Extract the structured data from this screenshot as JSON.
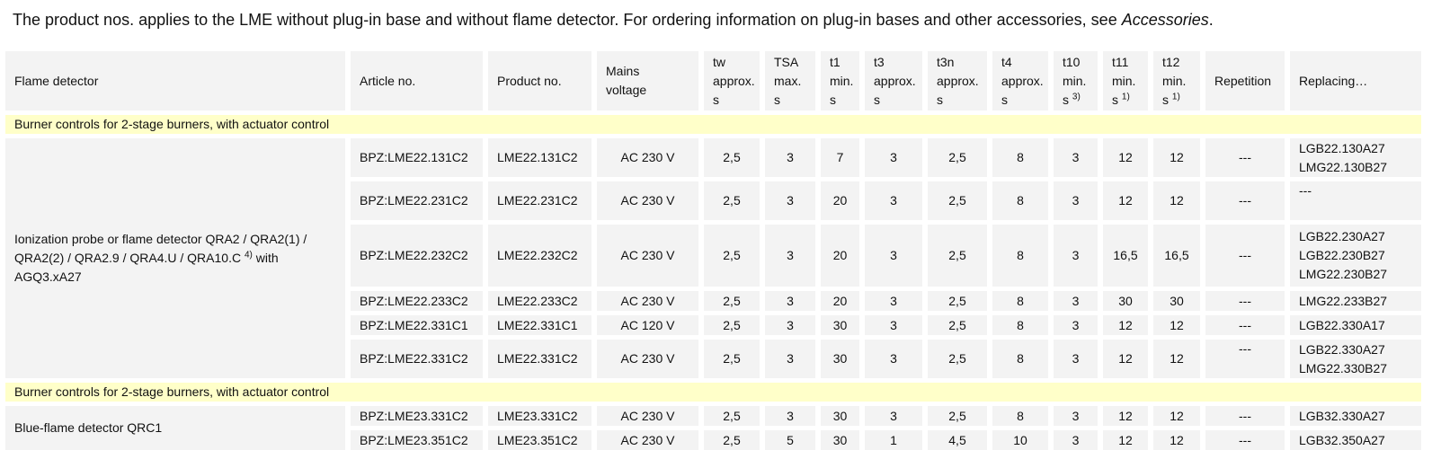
{
  "intro": {
    "text": "The product nos. applies to the LME without plug-in base and without flame detector. For ordering information on plug-in bases and other accessories, see ",
    "link": "Accessories",
    "end": "."
  },
  "columns": [
    {
      "lines": [
        "Flame detector"
      ]
    },
    {
      "lines": [
        "Article no."
      ]
    },
    {
      "lines": [
        "Product no."
      ]
    },
    {
      "lines": [
        "Mains",
        "voltage"
      ]
    },
    {
      "lines": [
        "tw",
        "approx.",
        "s"
      ]
    },
    {
      "lines": [
        "TSA",
        "max.",
        "s"
      ]
    },
    {
      "lines": [
        "t1",
        "min.",
        "s"
      ]
    },
    {
      "lines": [
        "t3",
        "approx.",
        "s"
      ]
    },
    {
      "lines": [
        "t3n",
        "approx.",
        "s"
      ]
    },
    {
      "lines": [
        "t4",
        "approx.",
        "s"
      ]
    },
    {
      "lines": [
        "t10",
        "min.",
        "s"
      ],
      "sup": "3)"
    },
    {
      "lines": [
        "t11",
        "min.",
        "s"
      ],
      "sup": "1)"
    },
    {
      "lines": [
        "t12",
        "min.",
        "s"
      ],
      "sup": "1)"
    },
    {
      "lines": [
        "Repetition"
      ]
    },
    {
      "lines": [
        "Replacing…"
      ]
    }
  ],
  "groups": [
    {
      "title": "Burner controls for 2-stage burners, with actuator control",
      "detector": {
        "text": "Ionization probe or flame detector QRA2 / QRA2(1) / QRA2(2) / QRA2.9 / QRA4.U / QRA10.C",
        "sup": "4)",
        "after": " with AGQ3.xA27"
      },
      "rows": [
        {
          "article": "BPZ:LME22.131C2",
          "product": "LME22.131C2",
          "mains": "AC 230 V",
          "tw": "2,5",
          "tsa": "3",
          "t1": "7",
          "t3": "3",
          "t3n": "2,5",
          "t4": "8",
          "t10": "3",
          "t11": "12",
          "t12": "12",
          "repetition": "---",
          "replacing": [
            "LGB22.130A27",
            "LMG22.130B27"
          ]
        },
        {
          "article": "BPZ:LME22.231C2",
          "product": "LME22.231C2",
          "mains": "AC 230 V",
          "tw": "2,5",
          "tsa": "3",
          "t1": "20",
          "t3": "3",
          "t3n": "2,5",
          "t4": "8",
          "t10": "3",
          "t11": "12",
          "t12": "12",
          "repetition": "---",
          "replacing": [
            "---"
          ]
        },
        {
          "article": "BPZ:LME22.232C2",
          "product": "LME22.232C2",
          "mains": "AC 230 V",
          "tw": "2,5",
          "tsa": "3",
          "t1": "20",
          "t3": "3",
          "t3n": "2,5",
          "t4": "8",
          "t10": "3",
          "t11": "16,5",
          "t12": "16,5",
          "repetition": "---",
          "replacing": [
            "LGB22.230A27",
            "LGB22.230B27",
            "LMG22.230B27"
          ]
        },
        {
          "article": "BPZ:LME22.233C2",
          "product": "LME22.233C2",
          "mains": "AC 230 V",
          "tw": "2,5",
          "tsa": "3",
          "t1": "20",
          "t3": "3",
          "t3n": "2,5",
          "t4": "8",
          "t10": "3",
          "t11": "30",
          "t12": "30",
          "repetition": "---",
          "replacing": [
            "LMG22.233B27"
          ]
        },
        {
          "article": "BPZ:LME22.331C1",
          "product": "LME22.331C1",
          "mains": "AC 120 V",
          "tw": "2,5",
          "tsa": "3",
          "t1": "30",
          "t3": "3",
          "t3n": "2,5",
          "t4": "8",
          "t10": "3",
          "t11": "12",
          "t12": "12",
          "repetition": "---",
          "replacing": [
            "LGB22.330A17"
          ]
        },
        {
          "article": "BPZ:LME22.331C2",
          "product": "LME22.331C2",
          "mains": "AC 230 V",
          "tw": "2,5",
          "tsa": "3",
          "t1": "30",
          "t3": "3",
          "t3n": "2,5",
          "t4": "8",
          "t10": "3",
          "t11": "12",
          "t12": "12",
          "repetition": "---",
          "replacing": [
            "LGB22.330A27",
            "LMG22.330B27"
          ]
        }
      ]
    },
    {
      "title": "Burner controls for 2-stage burners, with actuator control",
      "detector": {
        "text": "Blue-flame detector QRC1"
      },
      "rows": [
        {
          "article": "BPZ:LME23.331C2",
          "product": "LME23.331C2",
          "mains": "AC 230 V",
          "tw": "2,5",
          "tsa": "3",
          "t1": "30",
          "t3": "3",
          "t3n": "2,5",
          "t4": "8",
          "t10": "3",
          "t11": "12",
          "t12": "12",
          "repetition": "---",
          "replacing": [
            "LGB32.330A27"
          ]
        },
        {
          "article": "BPZ:LME23.351C2",
          "product": "LME23.351C2",
          "mains": "AC 230 V",
          "tw": "2,5",
          "tsa": "5",
          "t1": "30",
          "t3": "1",
          "t3n": "4,5",
          "t4": "10",
          "t10": "3",
          "t11": "12",
          "t12": "12",
          "repetition": "---",
          "replacing": [
            "LGB32.350A27"
          ]
        }
      ]
    }
  ]
}
